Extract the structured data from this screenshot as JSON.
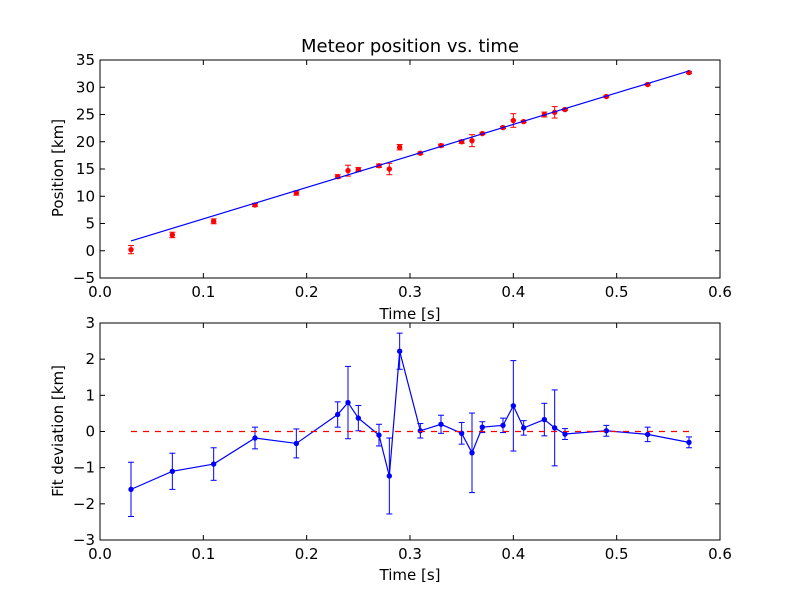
{
  "chart_data": [
    {
      "type": "scatter",
      "title": "Meteor position vs. time",
      "xlabel": "Time [s]",
      "ylabel": "Position [km]",
      "xlim": [
        0.0,
        0.6
      ],
      "ylim": [
        -5,
        35
      ],
      "xticks": [
        "0.0",
        "0.1",
        "0.2",
        "0.3",
        "0.4",
        "0.5",
        "0.6"
      ],
      "yticks": [
        "−5",
        "0",
        "5",
        "10",
        "15",
        "20",
        "25",
        "30",
        "35"
      ],
      "grid": false,
      "colors": {
        "points": "#ff0000",
        "fit": "#0000ff"
      },
      "series": [
        {
          "kind": "errorbar-points",
          "x": [
            0.03,
            0.07,
            0.11,
            0.15,
            0.19,
            0.23,
            0.24,
            0.25,
            0.27,
            0.28,
            0.29,
            0.31,
            0.33,
            0.35,
            0.36,
            0.37,
            0.39,
            0.4,
            0.41,
            0.43,
            0.44,
            0.45,
            0.49,
            0.53,
            0.57
          ],
          "y": [
            0.2,
            2.9,
            5.4,
            8.4,
            10.6,
            13.6,
            14.7,
            14.9,
            15.6,
            15.0,
            19.0,
            17.9,
            19.3,
            20.0,
            20.2,
            21.5,
            22.6,
            23.9,
            23.7,
            25.0,
            25.4,
            25.9,
            28.3,
            30.5,
            32.7
          ],
          "err": [
            0.75,
            0.5,
            0.45,
            0.3,
            0.4,
            0.35,
            1.0,
            0.35,
            0.3,
            1.05,
            0.5,
            0.2,
            0.25,
            0.3,
            1.1,
            0.15,
            0.2,
            1.25,
            0.2,
            0.45,
            1.05,
            0.15,
            0.15,
            0.2,
            0.15
          ]
        },
        {
          "kind": "fit-line",
          "x": [
            0.03,
            0.57
          ],
          "y": [
            1.8,
            33.0
          ]
        }
      ]
    },
    {
      "type": "line",
      "xlabel": "Time [s]",
      "ylabel": "Fit deviation [km]",
      "xlim": [
        0.0,
        0.6
      ],
      "ylim": [
        -3,
        3
      ],
      "xticks": [
        "0.0",
        "0.1",
        "0.2",
        "0.3",
        "0.4",
        "0.5",
        "0.6"
      ],
      "yticks": [
        "−3",
        "−2",
        "−1",
        "0",
        "1",
        "2",
        "3"
      ],
      "grid": false,
      "colors": {
        "line": "#0000ff",
        "reference": "#ff0000"
      },
      "series": [
        {
          "kind": "errorbar-line",
          "x": [
            0.03,
            0.07,
            0.11,
            0.15,
            0.19,
            0.23,
            0.24,
            0.25,
            0.27,
            0.28,
            0.29,
            0.31,
            0.33,
            0.35,
            0.36,
            0.37,
            0.39,
            0.4,
            0.41,
            0.43,
            0.44,
            0.45,
            0.49,
            0.53,
            0.57
          ],
          "y": [
            -1.6,
            -1.1,
            -0.9,
            -0.18,
            -0.33,
            0.47,
            0.8,
            0.37,
            -0.1,
            -1.23,
            2.22,
            0.02,
            0.2,
            -0.05,
            -0.59,
            0.12,
            0.17,
            0.71,
            0.1,
            0.33,
            0.1,
            -0.07,
            0.02,
            -0.08,
            -0.3
          ],
          "err": [
            0.75,
            0.5,
            0.45,
            0.3,
            0.4,
            0.35,
            1.0,
            0.35,
            0.3,
            1.05,
            0.5,
            0.2,
            0.25,
            0.3,
            1.1,
            0.15,
            0.2,
            1.25,
            0.2,
            0.45,
            1.05,
            0.15,
            0.15,
            0.2,
            0.15
          ]
        },
        {
          "kind": "reference-line",
          "x": [
            0.03,
            0.57
          ],
          "y": [
            0,
            0
          ],
          "style": "dashed"
        }
      ]
    }
  ]
}
